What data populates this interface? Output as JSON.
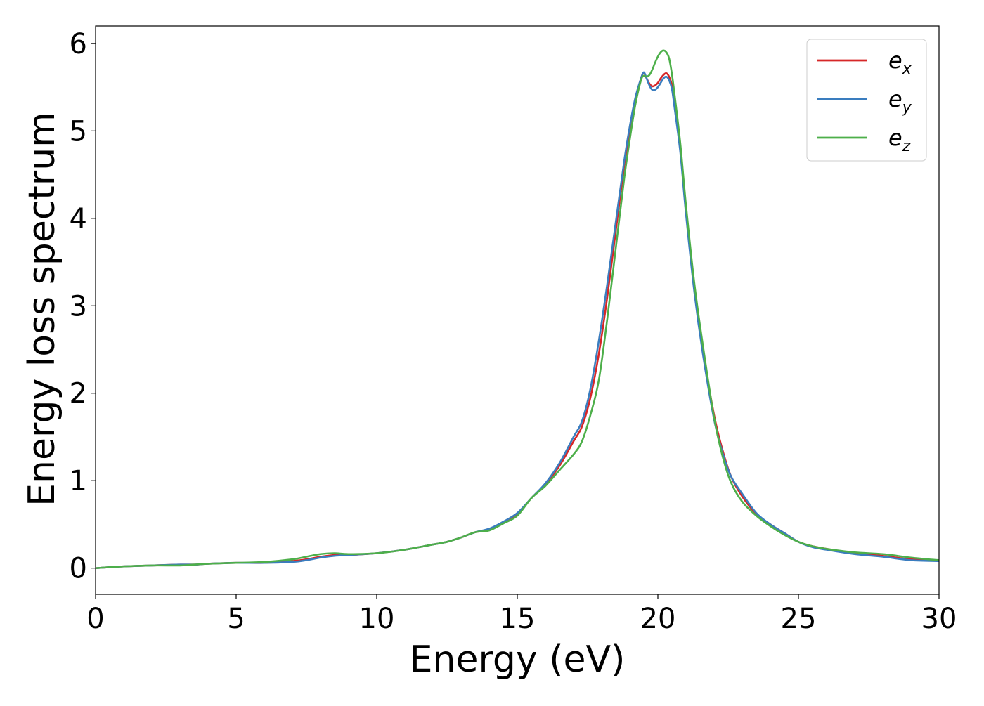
{
  "chart_data": {
    "type": "line",
    "title": "",
    "xlabel": "Energy (eV)",
    "ylabel": "Energy loss spectrum",
    "xlim": [
      0,
      30
    ],
    "ylim": [
      -0.3,
      6.2
    ],
    "xticks": [
      0,
      5,
      10,
      15,
      20,
      25,
      30
    ],
    "yticks": [
      0,
      1,
      2,
      3,
      4,
      5,
      6
    ],
    "grid": false,
    "legend_position": "top-right",
    "series": [
      {
        "name": "e_x",
        "legend_base": "e",
        "legend_sub": "x",
        "color": "#d62728",
        "x": [
          0,
          1,
          2,
          3,
          3.5,
          4,
          5,
          6,
          7,
          7.5,
          8,
          8.5,
          9,
          10,
          11,
          12,
          12.5,
          13,
          13.5,
          14,
          14.5,
          15,
          15.5,
          16,
          16.5,
          17,
          17.3,
          17.6,
          17.9,
          18.2,
          18.5,
          18.8,
          19,
          19.2,
          19.4,
          19.5,
          19.6,
          19.7,
          19.8,
          19.9,
          20,
          20.1,
          20.2,
          20.3,
          20.4,
          20.5,
          20.6,
          20.8,
          21,
          21.3,
          21.6,
          22,
          22.3,
          22.6,
          23,
          23.5,
          24,
          24.5,
          25,
          25.5,
          26,
          27,
          28,
          29,
          30
        ],
        "y": [
          0,
          0.02,
          0.03,
          0.04,
          0.04,
          0.05,
          0.06,
          0.06,
          0.08,
          0.1,
          0.13,
          0.15,
          0.15,
          0.17,
          0.21,
          0.27,
          0.3,
          0.35,
          0.41,
          0.44,
          0.52,
          0.62,
          0.8,
          0.96,
          1.17,
          1.45,
          1.62,
          1.95,
          2.45,
          3.1,
          3.85,
          4.6,
          5.0,
          5.35,
          5.6,
          5.66,
          5.6,
          5.54,
          5.51,
          5.52,
          5.55,
          5.6,
          5.64,
          5.66,
          5.62,
          5.52,
          5.3,
          4.8,
          4.1,
          3.2,
          2.5,
          1.75,
          1.35,
          1.05,
          0.82,
          0.62,
          0.5,
          0.4,
          0.3,
          0.25,
          0.22,
          0.17,
          0.14,
          0.1,
          0.09
        ]
      },
      {
        "name": "e_y",
        "legend_base": "e",
        "legend_sub": "y",
        "color": "#3a7dbf",
        "x": [
          0,
          1,
          2,
          3,
          3.5,
          4,
          5,
          6,
          7,
          7.5,
          8,
          8.5,
          9,
          10,
          11,
          12,
          12.5,
          13,
          13.5,
          14,
          14.5,
          15,
          15.5,
          16,
          16.5,
          17,
          17.3,
          17.6,
          17.9,
          18.2,
          18.5,
          18.8,
          19,
          19.2,
          19.4,
          19.5,
          19.6,
          19.7,
          19.8,
          19.9,
          20,
          20.1,
          20.2,
          20.3,
          20.4,
          20.5,
          20.6,
          20.8,
          21,
          21.3,
          21.6,
          22,
          22.3,
          22.6,
          23,
          23.5,
          24,
          24.5,
          25,
          25.5,
          26,
          27,
          28,
          29,
          30
        ],
        "y": [
          0,
          0.02,
          0.03,
          0.04,
          0.04,
          0.05,
          0.06,
          0.06,
          0.07,
          0.09,
          0.12,
          0.14,
          0.15,
          0.17,
          0.21,
          0.27,
          0.3,
          0.35,
          0.41,
          0.45,
          0.53,
          0.63,
          0.8,
          0.97,
          1.2,
          1.5,
          1.68,
          2.05,
          2.6,
          3.25,
          3.95,
          4.65,
          5.05,
          5.38,
          5.6,
          5.67,
          5.6,
          5.52,
          5.47,
          5.47,
          5.5,
          5.55,
          5.6,
          5.62,
          5.58,
          5.48,
          5.25,
          4.75,
          4.05,
          3.15,
          2.45,
          1.7,
          1.32,
          1.05,
          0.85,
          0.63,
          0.5,
          0.4,
          0.3,
          0.24,
          0.21,
          0.16,
          0.13,
          0.09,
          0.08
        ]
      },
      {
        "name": "e_z",
        "legend_base": "e",
        "legend_sub": "z",
        "color": "#4daf4a",
        "x": [
          0,
          1,
          2,
          3,
          3.5,
          4,
          5,
          6,
          7,
          7.5,
          8,
          8.5,
          9,
          10,
          11,
          12,
          12.5,
          13,
          13.5,
          14,
          14.5,
          15,
          15.5,
          16,
          16.5,
          17,
          17.3,
          17.6,
          17.9,
          18.2,
          18.5,
          18.8,
          19,
          19.2,
          19.4,
          19.5,
          19.6,
          19.7,
          19.8,
          19.9,
          20,
          20.1,
          20.2,
          20.3,
          20.4,
          20.5,
          20.6,
          20.8,
          21,
          21.3,
          21.6,
          22,
          22.3,
          22.6,
          23,
          23.5,
          24,
          24.5,
          25,
          25.5,
          26,
          27,
          28,
          29,
          30
        ],
        "y": [
          0,
          0.02,
          0.03,
          0.03,
          0.04,
          0.05,
          0.06,
          0.07,
          0.1,
          0.13,
          0.16,
          0.17,
          0.16,
          0.17,
          0.21,
          0.27,
          0.3,
          0.35,
          0.41,
          0.43,
          0.51,
          0.6,
          0.8,
          0.94,
          1.12,
          1.3,
          1.45,
          1.75,
          2.15,
          2.85,
          3.65,
          4.45,
          4.9,
          5.3,
          5.58,
          5.63,
          5.62,
          5.64,
          5.7,
          5.78,
          5.85,
          5.9,
          5.92,
          5.9,
          5.83,
          5.65,
          5.4,
          4.85,
          4.15,
          3.25,
          2.55,
          1.72,
          1.28,
          0.98,
          0.76,
          0.6,
          0.48,
          0.38,
          0.3,
          0.25,
          0.22,
          0.18,
          0.16,
          0.12,
          0.09
        ]
      }
    ]
  }
}
